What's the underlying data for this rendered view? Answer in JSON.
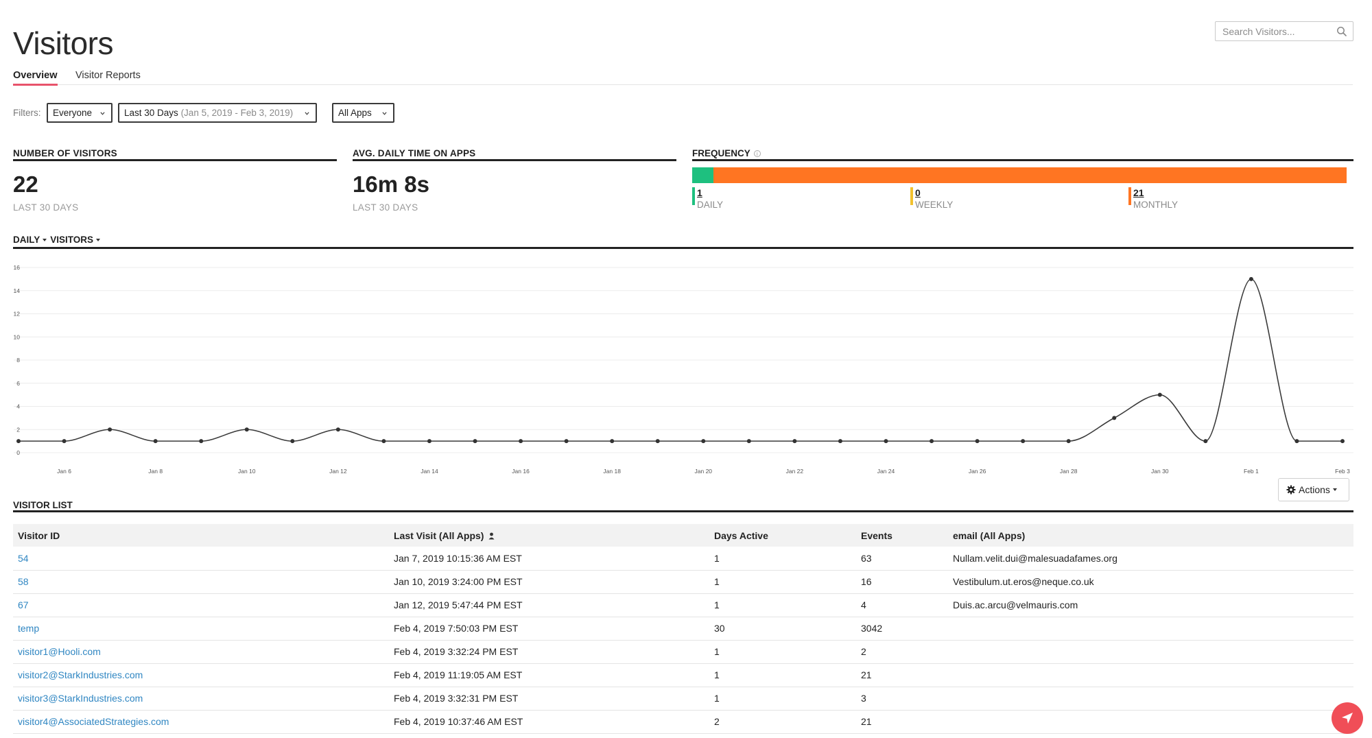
{
  "page": {
    "title": "Visitors"
  },
  "search": {
    "placeholder": "Search Visitors..."
  },
  "tabs": [
    {
      "label": "Overview",
      "active": true
    },
    {
      "label": "Visitor Reports",
      "active": false
    }
  ],
  "filters": {
    "label": "Filters:",
    "segment": "Everyone",
    "date_range": "Last 30 Days",
    "date_range_detail": "(Jan 5, 2019 - Feb 3, 2019)",
    "apps": "All Apps"
  },
  "metrics": {
    "visitors": {
      "heading": "NUMBER OF VISITORS",
      "value": "22",
      "sub": "LAST 30 DAYS"
    },
    "avg_time": {
      "heading": "AVG. DAILY TIME ON APPS",
      "value": "16m 8s",
      "sub": "LAST 30 DAYS"
    }
  },
  "frequency": {
    "heading": "FREQUENCY",
    "info_icon": "i",
    "daily": {
      "value": "1",
      "label": "DAILY",
      "count": 1,
      "color": "#1ec07f"
    },
    "weekly": {
      "value": "0",
      "label": "WEEKLY",
      "count": 0,
      "color": "#f2c12e"
    },
    "monthly": {
      "value": "21",
      "label": "MONTHLY",
      "count": 21,
      "color": "#ff7522"
    }
  },
  "chart_header": {
    "interval": "DAILY",
    "metric": "VISITORS"
  },
  "chart_data": {
    "type": "line",
    "x": [
      "Jan 5",
      "Jan 6",
      "Jan 7",
      "Jan 8",
      "Jan 9",
      "Jan 10",
      "Jan 11",
      "Jan 12",
      "Jan 13",
      "Jan 14",
      "Jan 15",
      "Jan 16",
      "Jan 17",
      "Jan 18",
      "Jan 19",
      "Jan 20",
      "Jan 21",
      "Jan 22",
      "Jan 23",
      "Jan 24",
      "Jan 25",
      "Jan 26",
      "Jan 27",
      "Jan 28",
      "Jan 29",
      "Jan 30",
      "Jan 31",
      "Feb 1",
      "Feb 2",
      "Feb 3"
    ],
    "series": [
      {
        "values": [
          1,
          1,
          2,
          1,
          1,
          2,
          1,
          2,
          1,
          1,
          1,
          1,
          1,
          1,
          1,
          1,
          1,
          1,
          1,
          1,
          1,
          1,
          1,
          1,
          3,
          5,
          1,
          15,
          1,
          1
        ]
      }
    ],
    "x_tick_labels": [
      "Jan 6",
      "Jan 8",
      "Jan 10",
      "Jan 12",
      "Jan 14",
      "Jan 16",
      "Jan 18",
      "Jan 20",
      "Jan 22",
      "Jan 24",
      "Jan 26",
      "Jan 28",
      "Jan 30",
      "Feb 1",
      "Feb 3"
    ],
    "y_ticks": [
      0,
      2,
      4,
      6,
      8,
      10,
      12,
      14,
      16
    ],
    "ylim": [
      0,
      16
    ],
    "grid": true,
    "line_color": "#3a3a3a"
  },
  "actions_button": {
    "label": "Actions"
  },
  "visitor_list": {
    "heading": "VISITOR LIST",
    "columns": [
      "Visitor ID",
      "Last Visit (All Apps)",
      "Days Active",
      "Events",
      "email (All Apps)"
    ],
    "rows": [
      {
        "id": "54",
        "last_visit": "Jan 7, 2019 10:15:36 AM EST",
        "days_active": "1",
        "events": "63",
        "email": "Nullam.velit.dui@malesuadafames.org"
      },
      {
        "id": "58",
        "last_visit": "Jan 10, 2019 3:24:00 PM EST",
        "days_active": "1",
        "events": "16",
        "email": "Vestibulum.ut.eros@neque.co.uk"
      },
      {
        "id": "67",
        "last_visit": "Jan 12, 2019 5:47:44 PM EST",
        "days_active": "1",
        "events": "4",
        "email": "Duis.ac.arcu@velmauris.com"
      },
      {
        "id": "temp",
        "last_visit": "Feb 4, 2019 7:50:03 PM EST",
        "days_active": "30",
        "events": "3042",
        "email": ""
      },
      {
        "id": "visitor1@Hooli.com",
        "last_visit": "Feb 4, 2019 3:32:24 PM EST",
        "days_active": "1",
        "events": "2",
        "email": ""
      },
      {
        "id": "visitor2@StarkIndustries.com",
        "last_visit": "Feb 4, 2019 11:19:05 AM EST",
        "days_active": "1",
        "events": "21",
        "email": ""
      },
      {
        "id": "visitor3@StarkIndustries.com",
        "last_visit": "Feb 4, 2019 3:32:31 PM EST",
        "days_active": "1",
        "events": "3",
        "email": ""
      },
      {
        "id": "visitor4@AssociatedStrategies.com",
        "last_visit": "Feb 4, 2019 10:37:46 AM EST",
        "days_active": "2",
        "events": "21",
        "email": ""
      }
    ]
  }
}
